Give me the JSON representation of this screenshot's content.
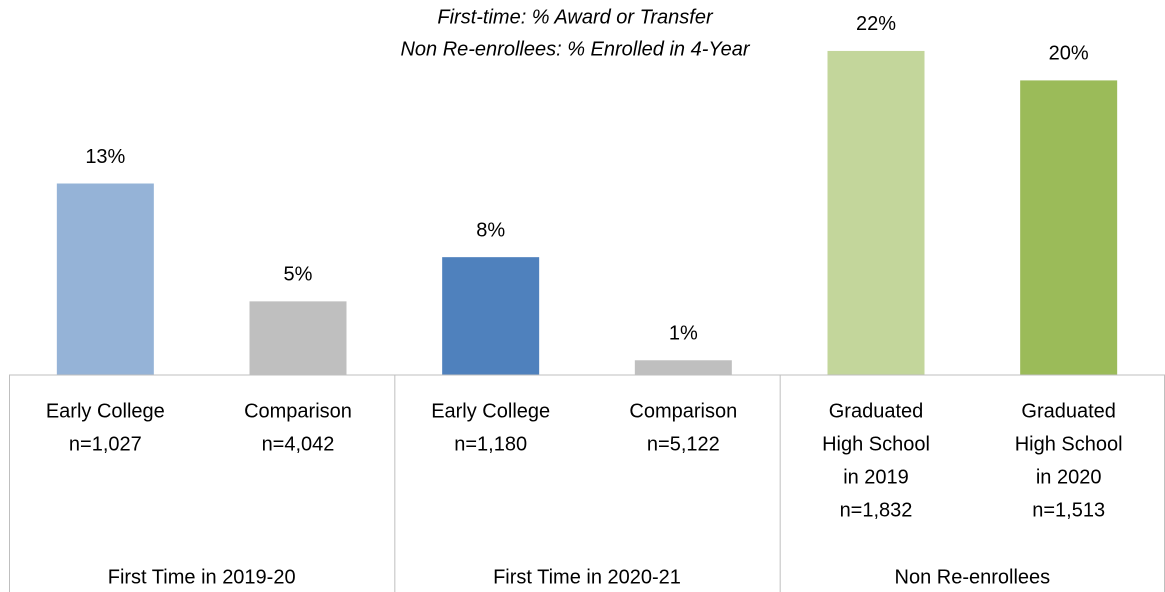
{
  "chart_data": {
    "type": "bar",
    "annotation": [
      "First-time: % Award or Transfer",
      "Non Re-enrollees: % Enrolled in 4-Year"
    ],
    "categories": [
      [
        "Early College",
        "n=1,027"
      ],
      [
        "Comparison",
        "n=4,042"
      ],
      [
        "Early College",
        "n=1,180"
      ],
      [
        "Comparison",
        "n=5,122"
      ],
      [
        "Graduated",
        "High School",
        "in 2019",
        "n=1,832"
      ],
      [
        "Graduated",
        "High School",
        "in 2020",
        "n=1,513"
      ]
    ],
    "groups": [
      "First Time in 2019-20",
      "First Time in 2020-21",
      "Non Re-enrollees"
    ],
    "values": [
      13,
      5,
      8,
      1,
      22,
      20
    ],
    "value_labels": [
      "13%",
      "5%",
      "8%",
      "1%",
      "22%",
      "20%"
    ],
    "colors": [
      "#95b3d7",
      "#bfbfbf",
      "#4f81bd",
      "#bfbfbf",
      "#c3d69b",
      "#9bbb59"
    ]
  }
}
